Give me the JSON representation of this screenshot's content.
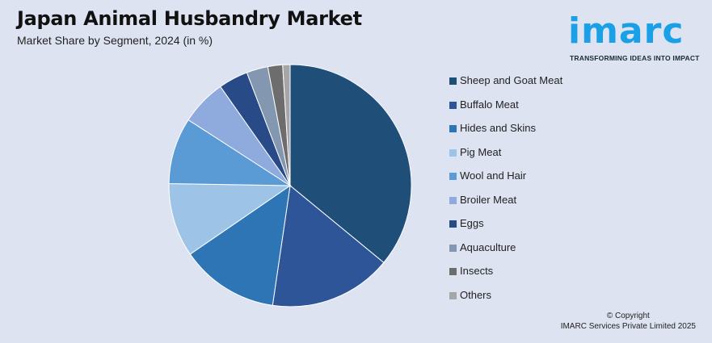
{
  "header": {
    "title": "Japan Animal Husbandry Market",
    "subtitle": "Market Share by Segment, 2024 (in %)"
  },
  "logo": {
    "word": "imarc",
    "tagline": "TRANSFORMING IDEAS INTO IMPACT"
  },
  "footer": {
    "copyright_line1": "© Copyright",
    "copyright_line2": "IMARC Services Private Limited 2025"
  },
  "chart_data": {
    "type": "pie",
    "title": "Japan Animal Husbandry Market",
    "subtitle": "Market Share by Segment, 2024 (in %)",
    "legend_position": "right",
    "slices": [
      {
        "label": "Sheep and Goat Meat",
        "value": 36.5,
        "color": "#1f4e79"
      },
      {
        "label": "Buffalo Meat",
        "value": 16.6,
        "color": "#2e5597"
      },
      {
        "label": "Hides and Skins",
        "value": 13.3,
        "color": "#2e75b6"
      },
      {
        "label": "Pig Meat",
        "value": 10.0,
        "color": "#9dc3e6"
      },
      {
        "label": "Wool and Hair",
        "value": 9.0,
        "color": "#5b9bd5"
      },
      {
        "label": "Broiler Meat",
        "value": 6.2,
        "color": "#8faadc"
      },
      {
        "label": "Eggs",
        "value": 4.0,
        "color": "#284a86"
      },
      {
        "label": "Aquaculture",
        "value": 2.9,
        "color": "#8497b0"
      },
      {
        "label": "Insects",
        "value": 2.0,
        "color": "#6d6d6d"
      },
      {
        "label": "Others",
        "value": 1.0,
        "color": "#a6a6a6"
      }
    ]
  }
}
